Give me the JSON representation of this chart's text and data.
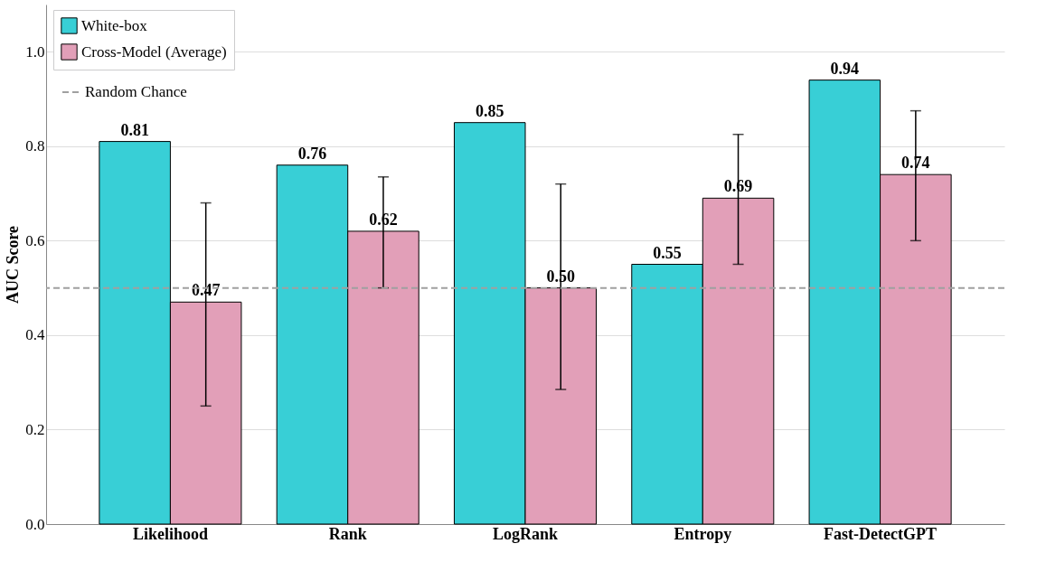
{
  "chart_data": {
    "type": "bar",
    "ylabel": "AUC Score",
    "categories": [
      "Likelihood",
      "Rank",
      "LogRank",
      "Entropy",
      "Fast-DetectGPT"
    ],
    "series": [
      {
        "name": "White-box",
        "color": "#38cfd6",
        "values": [
          0.81,
          0.76,
          0.85,
          0.55,
          0.94
        ],
        "value_labels": [
          "0.81",
          "0.76",
          "0.85",
          "0.55",
          "0.94"
        ]
      },
      {
        "name": "Cross-Model (Average)",
        "color": "#e29fb8",
        "values": [
          0.47,
          0.62,
          0.5,
          0.69,
          0.74
        ],
        "value_labels": [
          "0.47",
          "0.62",
          "0.50",
          "0.69",
          "0.74"
        ],
        "errors": [
          [
            0.25,
            0.68
          ],
          [
            0.5,
            0.735
          ],
          [
            0.285,
            0.72
          ],
          [
            0.55,
            0.825
          ],
          [
            0.6,
            0.875
          ]
        ]
      }
    ],
    "ylim": [
      0,
      1.1
    ],
    "yticks": [
      {
        "value": 0,
        "label": "0.0"
      },
      {
        "value": 0.2,
        "label": "0.2"
      },
      {
        "value": 0.4,
        "label": "0.4"
      },
      {
        "value": 0.6,
        "label": "0.6"
      },
      {
        "value": 0.8,
        "label": "0.8"
      },
      {
        "value": 1,
        "label": "1.0"
      }
    ],
    "ref_lines": [
      {
        "axis": "y",
        "value": 0.5,
        "label": "Random Chance",
        "color": "#a0a0a0",
        "line_style": "dashed"
      }
    ],
    "grid": "y",
    "legend": "top left"
  }
}
